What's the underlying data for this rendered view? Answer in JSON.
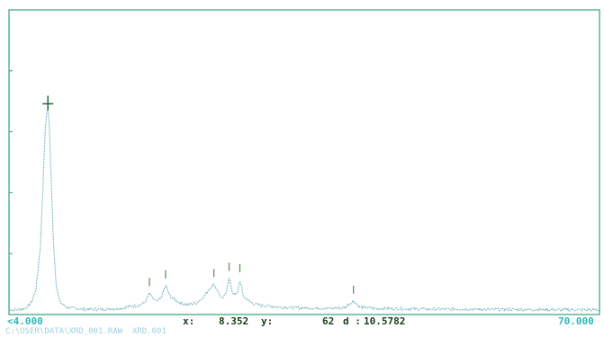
{
  "colors": {
    "frame": "#2fa37a",
    "trace": "#7fb8c4",
    "marker": "#6a9a6a",
    "cursor": "#2a6a3a",
    "status_text": "#1a3a1a",
    "range_text": "#2ab8b8"
  },
  "status": {
    "x_min": "<4.000",
    "x_label": "x:",
    "x_value": "8.352",
    "y_label": "y:",
    "y_value": "62",
    "d_label": "d :",
    "d_value": "10.5782",
    "x_max": "70.000"
  },
  "path_line": "C:\\USER\\DATA\\XRD_001.RAW  XRD.001",
  "chart_data": {
    "type": "line",
    "xlim": [
      4,
      70
    ],
    "ylim": [
      0,
      100
    ],
    "grid": false,
    "series": [
      {
        "points": [
          [
            4.0,
            1.5
          ],
          [
            5.0,
            1.6
          ],
          [
            5.5,
            1.8
          ],
          [
            6.0,
            2.4
          ],
          [
            6.5,
            4.0
          ],
          [
            7.0,
            8.0
          ],
          [
            7.5,
            22.0
          ],
          [
            7.8,
            42.0
          ],
          [
            8.0,
            58.0
          ],
          [
            8.2,
            66.0
          ],
          [
            8.35,
            68.0
          ],
          [
            8.5,
            63.0
          ],
          [
            8.7,
            45.0
          ],
          [
            9.0,
            22.0
          ],
          [
            9.3,
            9.0
          ],
          [
            9.7,
            4.0
          ],
          [
            10.5,
            2.3
          ],
          [
            12.0,
            1.8
          ],
          [
            14.0,
            1.7
          ],
          [
            16.0,
            1.9
          ],
          [
            17.5,
            2.6
          ],
          [
            18.5,
            3.0
          ],
          [
            19.2,
            4.0
          ],
          [
            19.7,
            7.0
          ],
          [
            20.0,
            5.5
          ],
          [
            20.5,
            4.2
          ],
          [
            21.0,
            5.5
          ],
          [
            21.5,
            9.5
          ],
          [
            22.0,
            6.0
          ],
          [
            23.0,
            4.0
          ],
          [
            24.0,
            3.2
          ],
          [
            25.0,
            3.8
          ],
          [
            25.8,
            6.0
          ],
          [
            26.4,
            8.5
          ],
          [
            26.9,
            10.0
          ],
          [
            27.3,
            8.0
          ],
          [
            27.8,
            5.0
          ],
          [
            28.2,
            6.5
          ],
          [
            28.6,
            12.0
          ],
          [
            29.0,
            7.0
          ],
          [
            29.5,
            6.5
          ],
          [
            29.8,
            11.5
          ],
          [
            30.2,
            6.0
          ],
          [
            31.0,
            4.0
          ],
          [
            32.0,
            3.0
          ],
          [
            34.0,
            2.5
          ],
          [
            36.0,
            2.2
          ],
          [
            38.0,
            2.1
          ],
          [
            40.0,
            2.0
          ],
          [
            41.5,
            2.3
          ],
          [
            42.5,
            4.5
          ],
          [
            43.2,
            2.5
          ],
          [
            45.0,
            2.0
          ],
          [
            48.0,
            1.9
          ],
          [
            51.0,
            1.8
          ],
          [
            54.0,
            1.8
          ],
          [
            57.0,
            1.7
          ],
          [
            60.0,
            1.7
          ],
          [
            63.0,
            1.6
          ],
          [
            66.0,
            1.6
          ],
          [
            70.0,
            1.5
          ]
        ]
      }
    ],
    "peak_markers_x": [
      8.35,
      19.7,
      21.5,
      26.9,
      28.6,
      29.8,
      42.5
    ],
    "cursor": {
      "x": 8.352,
      "y": 62
    }
  }
}
